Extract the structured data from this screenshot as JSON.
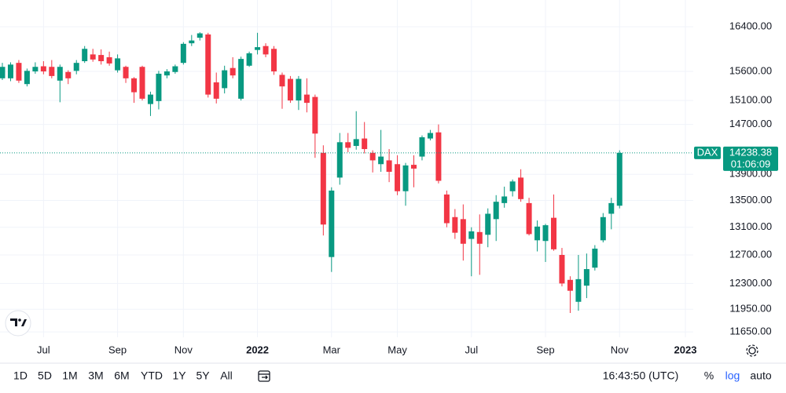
{
  "chart_data": {
    "type": "candlestick",
    "symbol": "DAX",
    "countdown": "01:06:09",
    "categories": [
      null,
      null,
      null,
      null,
      null,
      "Jul",
      null,
      null,
      null,
      null,
      null,
      null,
      null,
      null,
      "Sep",
      null,
      null,
      null,
      null,
      null,
      null,
      null,
      "Nov",
      null,
      null,
      null,
      null,
      null,
      null,
      null,
      null,
      "2022",
      null,
      null,
      null,
      null,
      null,
      null,
      null,
      null,
      "Mar",
      null,
      null,
      null,
      null,
      null,
      null,
      null,
      "May",
      null,
      null,
      null,
      null,
      null,
      null,
      null,
      null,
      "Jul",
      null,
      null,
      null,
      null,
      null,
      null,
      null,
      null,
      "Sep",
      null,
      null,
      null,
      null,
      null,
      null,
      null,
      null,
      "Nov",
      null,
      null,
      null,
      null,
      null,
      null,
      null,
      "2023"
    ],
    "open": [
      15480,
      15480,
      15750,
      15380,
      15600,
      15690,
      15680,
      15440,
      15590,
      15610,
      15780,
      15900,
      15890,
      15850,
      15620,
      15680,
      15480,
      15680,
      15040,
      15090,
      15530,
      15590,
      15750,
      16100,
      16200,
      16260,
      15410,
      15310,
      15660,
      15130,
      15700,
      15980,
      16050,
      16000,
      15540,
      15470,
      15100,
      15200,
      15160,
      14240,
      12670,
      13850,
      14410,
      14350,
      14470,
      14240,
      14060,
      14120,
      14060,
      13640,
      14050,
      14180,
      14470,
      14570,
      13590,
      13250,
      13220,
      12930,
      13030,
      12990,
      13220,
      13460,
      13640,
      13850,
      13460,
      12910,
      12900,
      13240,
      12700,
      12350,
      12050,
      12270,
      12520,
      12910,
      13300,
      13420,
      null,
      null,
      null,
      null,
      null,
      null,
      null,
      null
    ],
    "high": [
      15750,
      15760,
      15800,
      15650,
      15760,
      15780,
      15800,
      15720,
      15620,
      15800,
      16050,
      16000,
      15990,
      15950,
      15900,
      15700,
      15500,
      15700,
      15250,
      15610,
      15640,
      15720,
      16120,
      16250,
      16300,
      16290,
      15580,
      15700,
      15850,
      15860,
      15950,
      16290,
      16100,
      16050,
      15580,
      15520,
      15520,
      15480,
      15200,
      14360,
      13700,
      14560,
      14560,
      14920,
      14740,
      14280,
      14610,
      14300,
      14200,
      14080,
      14200,
      14520,
      14610,
      14700,
      13650,
      13370,
      13440,
      13100,
      13290,
      13380,
      13580,
      13710,
      13820,
      13980,
      13540,
      13200,
      13150,
      13590,
      12800,
      12400,
      12700,
      12720,
      12840,
      13310,
      13540,
      14280,
      null,
      null,
      null,
      null,
      null,
      null,
      null,
      null
    ],
    "low": [
      15450,
      15430,
      15400,
      15340,
      15560,
      15550,
      15480,
      15070,
      15380,
      15550,
      15750,
      15770,
      15720,
      15700,
      15580,
      15400,
      15060,
      15100,
      14840,
      14950,
      15480,
      15560,
      15720,
      16050,
      16150,
      15150,
      15050,
      15220,
      15480,
      15100,
      15680,
      15900,
      15850,
      15540,
      14960,
      15060,
      14940,
      14900,
      14160,
      12980,
      12460,
      13740,
      14250,
      14290,
      14230,
      13930,
      13940,
      13780,
      13580,
      13420,
      13700,
      14120,
      14440,
      13760,
      13100,
      12930,
      12620,
      12400,
      12420,
      12810,
      12900,
      13390,
      13560,
      13480,
      12980,
      12750,
      12600,
      12760,
      12260,
      11900,
      11930,
      12100,
      12480,
      12880,
      13070,
      13380,
      null,
      null,
      null,
      null,
      null,
      null,
      null,
      null
    ],
    "close": [
      15680,
      15720,
      15440,
      15610,
      15680,
      15600,
      15520,
      15680,
      15480,
      15750,
      16000,
      15810,
      15780,
      15740,
      15830,
      15480,
      15240,
      15130,
      15200,
      15560,
      15600,
      15690,
      16090,
      16150,
      16280,
      15200,
      15130,
      15620,
      15530,
      15820,
      15920,
      16030,
      15900,
      15600,
      15340,
      15100,
      15470,
      15060,
      14550,
      13140,
      13650,
      14410,
      14320,
      14460,
      14300,
      14120,
      14180,
      13940,
      13640,
      14040,
      13990,
      14490,
      14560,
      13800,
      13160,
      13020,
      12860,
      13040,
      12860,
      13300,
      13480,
      13560,
      13790,
      13520,
      13000,
      13110,
      13130,
      12780,
      12300,
      12200,
      12360,
      12500,
      12790,
      13250,
      13460,
      14238.38,
      null,
      null,
      null,
      null,
      null,
      null,
      null,
      null
    ],
    "up_color": "#089981",
    "down_color": "#f23645",
    "ylim": [
      11580,
      16900
    ],
    "yticks": [
      {
        "value": 11650,
        "label": "11650.00"
      },
      {
        "value": 11950,
        "label": "11950.00"
      },
      {
        "value": 12300,
        "label": "12300.00"
      },
      {
        "value": 12700,
        "label": "12700.00"
      },
      {
        "value": 13100,
        "label": "13100.00"
      },
      {
        "value": 13500,
        "label": "13500.00"
      },
      {
        "value": 13900,
        "label": "13900.00"
      },
      {
        "value": 14700,
        "label": "14700.00"
      },
      {
        "value": 15100,
        "label": "15100.00"
      },
      {
        "value": 15600,
        "label": "15600.00"
      },
      {
        "value": 16400,
        "label": "16400.00"
      }
    ],
    "log_scale": true,
    "grid": true
  },
  "toolbar": {
    "ranges": [
      "1D",
      "5D",
      "1M",
      "3M",
      "6M",
      "YTD",
      "1Y",
      "5Y",
      "All"
    ],
    "time": "16:43:50 (UTC)",
    "options": [
      "%",
      "log",
      "auto"
    ]
  }
}
